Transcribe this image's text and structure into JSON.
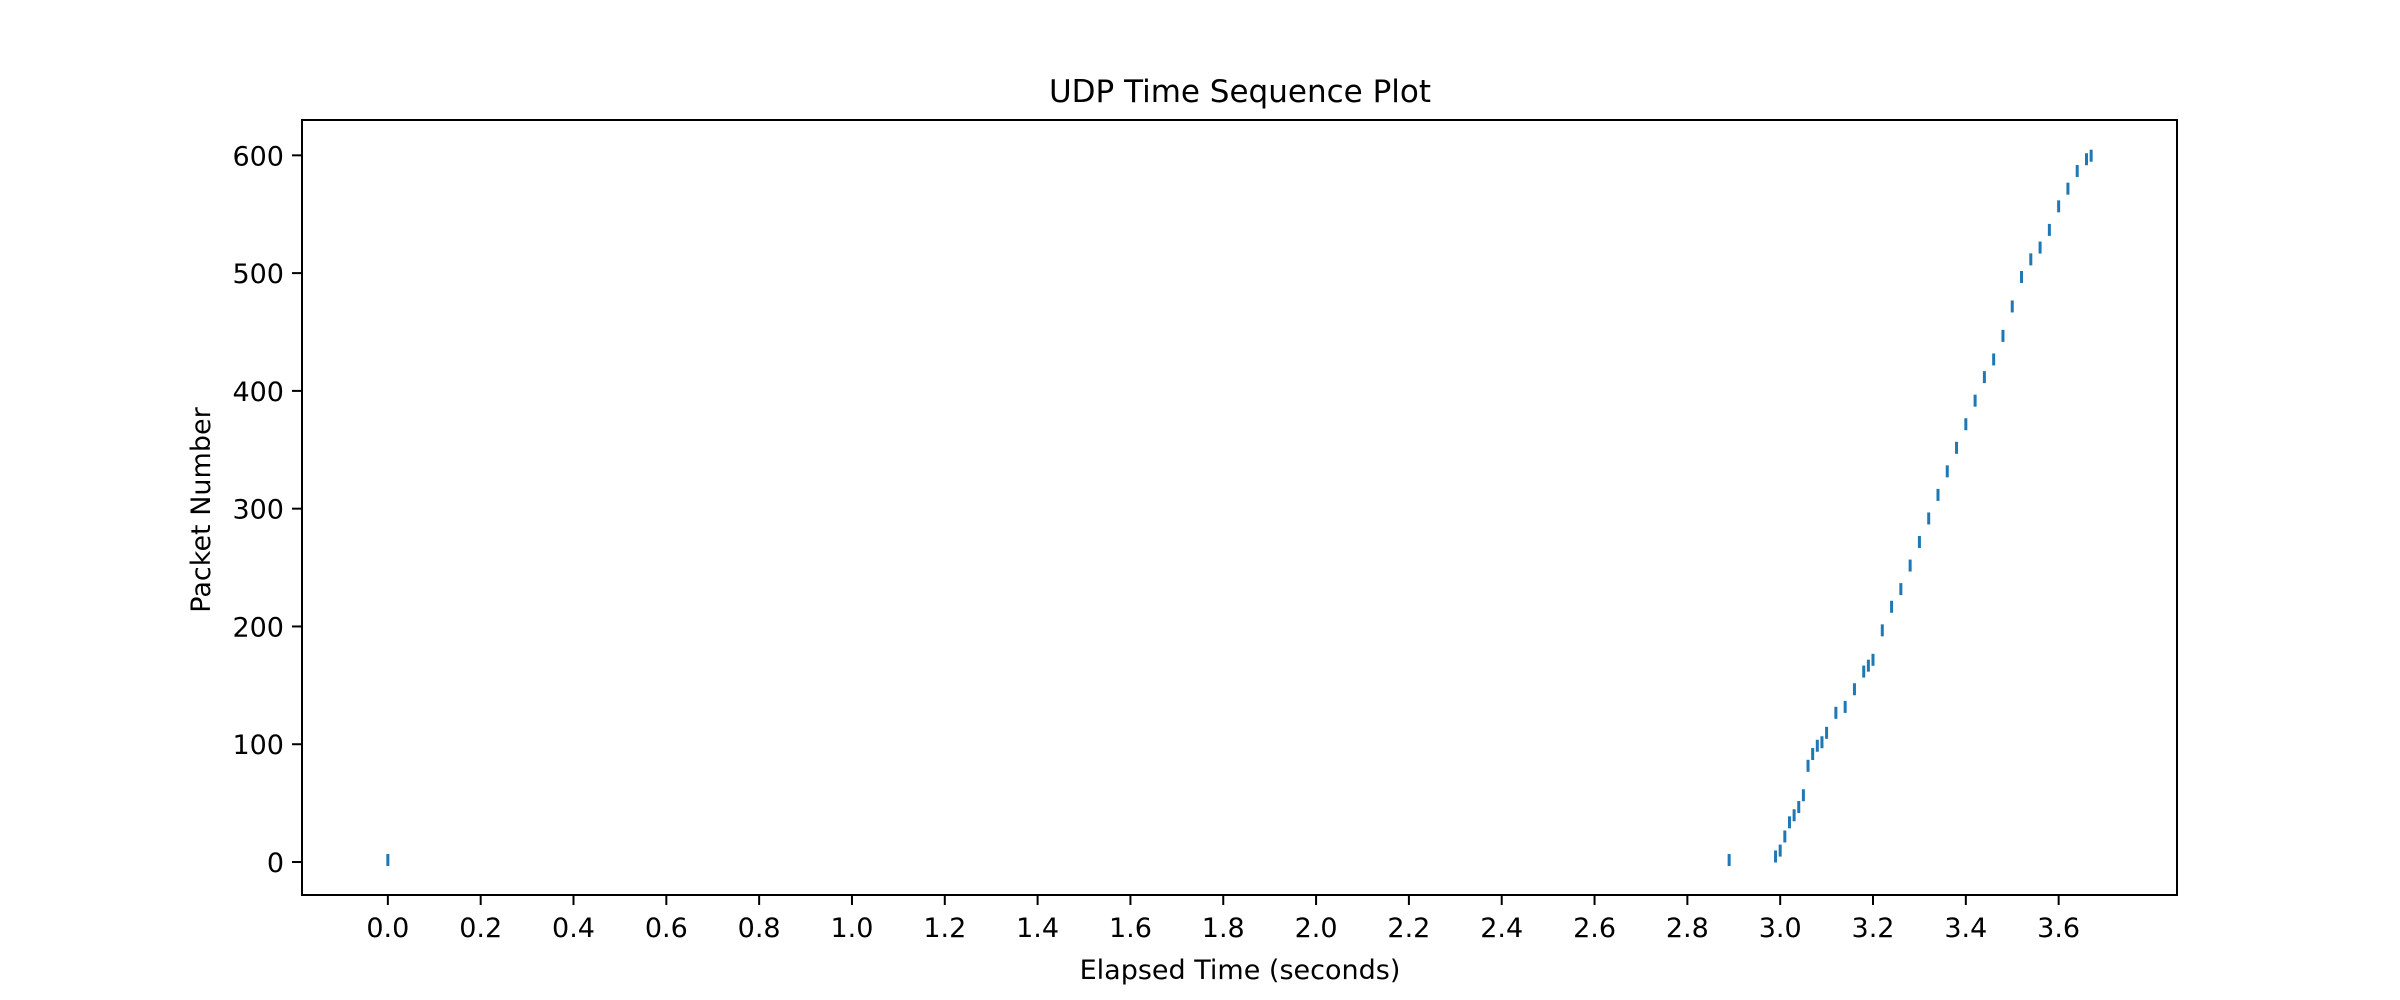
{
  "chart_data": {
    "type": "scatter",
    "title": "UDP Time Sequence Plot",
    "xlabel": "Elapsed Time (seconds)",
    "ylabel": "Packet Number",
    "xlim": [
      -0.185,
      3.855
    ],
    "ylim": [
      -28,
      630
    ],
    "xticks": [
      0.0,
      0.2,
      0.4,
      0.6,
      0.8,
      1.0,
      1.2,
      1.4,
      1.6,
      1.8,
      2.0,
      2.2,
      2.4,
      2.6,
      2.8,
      3.0,
      3.2,
      3.4,
      3.6
    ],
    "xtick_labels": [
      "0.0",
      "0.2",
      "0.4",
      "0.6",
      "0.8",
      "1.0",
      "1.2",
      "1.4",
      "1.6",
      "1.8",
      "2.0",
      "2.2",
      "2.4",
      "2.6",
      "2.8",
      "3.0",
      "3.2",
      "3.4",
      "3.6"
    ],
    "yticks": [
      0,
      100,
      200,
      300,
      400,
      500,
      600
    ],
    "ytick_labels": [
      "0",
      "100",
      "200",
      "300",
      "400",
      "500",
      "600"
    ],
    "grid": false,
    "legend": "none",
    "series_color": "#1f77b4",
    "marker": "short vertical tick",
    "series": [
      {
        "x": [
          0.0,
          2.89,
          2.99,
          3.0,
          3.01,
          3.02,
          3.03,
          3.04,
          3.05,
          3.06,
          3.07,
          3.08,
          3.09,
          3.1,
          3.12,
          3.14,
          3.16,
          3.18,
          3.19,
          3.2,
          3.22,
          3.24,
          3.26,
          3.28,
          3.3,
          3.32,
          3.34,
          3.36,
          3.38,
          3.4,
          3.42,
          3.44,
          3.46,
          3.48,
          3.5,
          3.52,
          3.54,
          3.56,
          3.58,
          3.6,
          3.62,
          3.64,
          3.66,
          3.67
        ],
        "y": [
          0,
          0,
          3,
          8,
          20,
          32,
          38,
          45,
          55,
          80,
          90,
          97,
          100,
          108,
          125,
          130,
          145,
          160,
          165,
          170,
          195,
          215,
          230,
          250,
          270,
          290,
          310,
          330,
          350,
          370,
          390,
          410,
          425,
          445,
          470,
          495,
          510,
          520,
          535,
          555,
          570,
          585,
          595,
          598
        ]
      }
    ]
  }
}
